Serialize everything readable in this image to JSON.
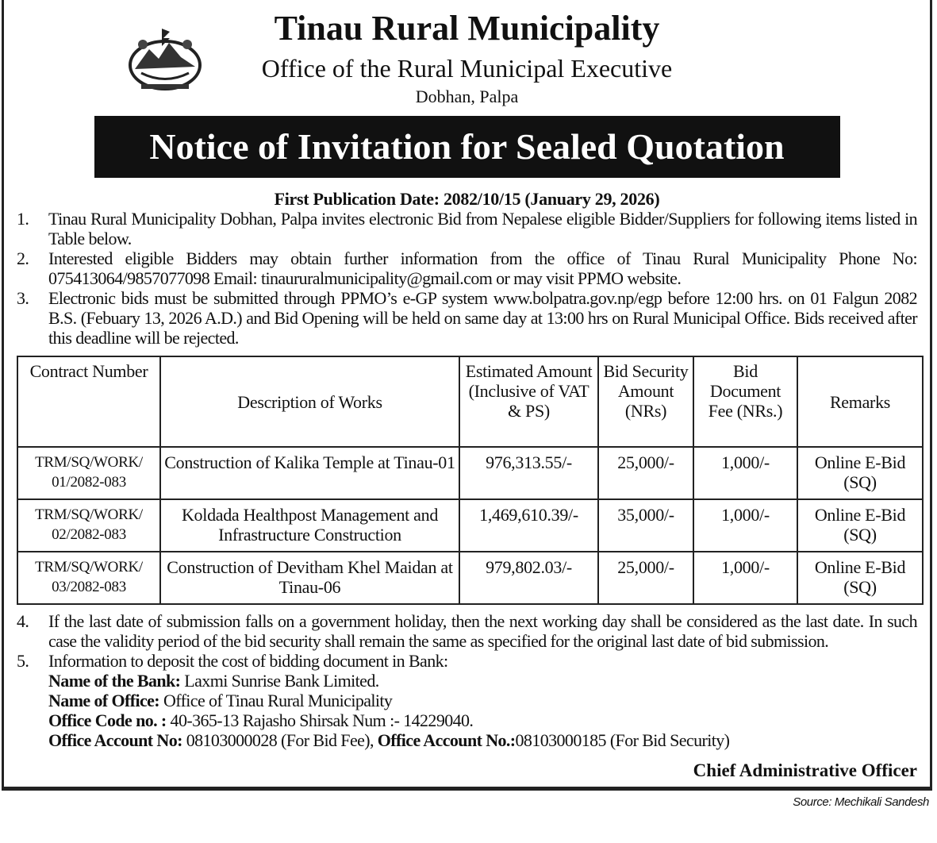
{
  "header": {
    "title": "Tinau Rural Municipality",
    "subtitle": "Office of the Rural Municipal Executive",
    "location": "Dobhan, Palpa",
    "banner": "Notice of  Invitation for Sealed Quotation",
    "emblem_icon": "nepal-government-emblem"
  },
  "publication_date": "First Publication Date: 2082/10/15 (January 29, 2026)",
  "items_top": [
    {
      "num": "1.",
      "text": "Tinau Rural Municipality Dobhan, Palpa invites electronic Bid from Nepalese eligible Bidder/Suppliers for following items listed in Table below."
    },
    {
      "num": "2.",
      "text": "Interested eligible Bidders may obtain further information from the office of Tinau Rural Municipality Phone No: 075413064/9857077098 Email: tinaururalmunicipality@gmail.com or may visit PPMO website."
    },
    {
      "num": "3.",
      "text": "Electronic bids must be submitted through PPMO’s e-GP system www.bolpatra.gov.np/egp before 12:00 hrs. on  01 Falgun 2082 B.S. (Febuary 13, 2026 A.D.) and Bid Opening will be held on same day at 13:00 hrs on Rural Municipal Office. Bids received after this deadline will be rejected."
    }
  ],
  "table": {
    "headers": [
      "Contract Number",
      "Description of Works",
      "Estimated Amount (Inclusive of VAT & PS)",
      "Bid Security Amount (NRs)",
      "Bid Document Fee (NRs.)",
      "Remarks"
    ],
    "rows": [
      [
        "TRM/SQ/WORK/ 01/2082-083",
        "Construction of  Kalika Temple at Tinau-01",
        "976,313.55/-",
        "25,000/-",
        "1,000/-",
        "Online E-Bid (SQ)"
      ],
      [
        "TRM/SQ/WORK/ 02/2082-083",
        "Koldada Healthpost Management and  Infrastructure Construction",
        "1,469,610.39/-",
        "35,000/-",
        "1,000/-",
        "Online E-Bid (SQ)"
      ],
      [
        "TRM/SQ/WORK/ 03/2082-083",
        "Construction of Devitham  Khel Maidan at Tinau-06",
        "979,802.03/-",
        "25,000/-",
        "1,000/-",
        "Online E-Bid (SQ)"
      ]
    ]
  },
  "item4": {
    "num": "4.",
    "text": "If the last date of submission falls on a government holiday, then the next working day shall be considered as the last date. In such case the validity period of the bid security shall remain the same as specified for the original last date of bid submission."
  },
  "item5": {
    "num": "5.",
    "text": "Information to deposit the cost of bidding document in Bank:",
    "bank_label": "Name of the Bank:",
    "bank_value": " Laxmi Sunrise Bank Limited.",
    "office_label": "Name of Office:",
    "office_value": " Office of Tinau Rural Municipality",
    "code_label": "Office Code no. :",
    "code_value": " 40-365-13 Rajasho Shirsak Num :- 14229040.",
    "acc1_label": "Office Account No:",
    "acc1_value": " 08103000028 (For Bid Fee), ",
    "acc2_label": "Office Account No.:",
    "acc2_value": "08103000185 (For Bid Security)"
  },
  "signature": "Chief Administrative Officer",
  "source": "Source: Mechikali Sandesh"
}
